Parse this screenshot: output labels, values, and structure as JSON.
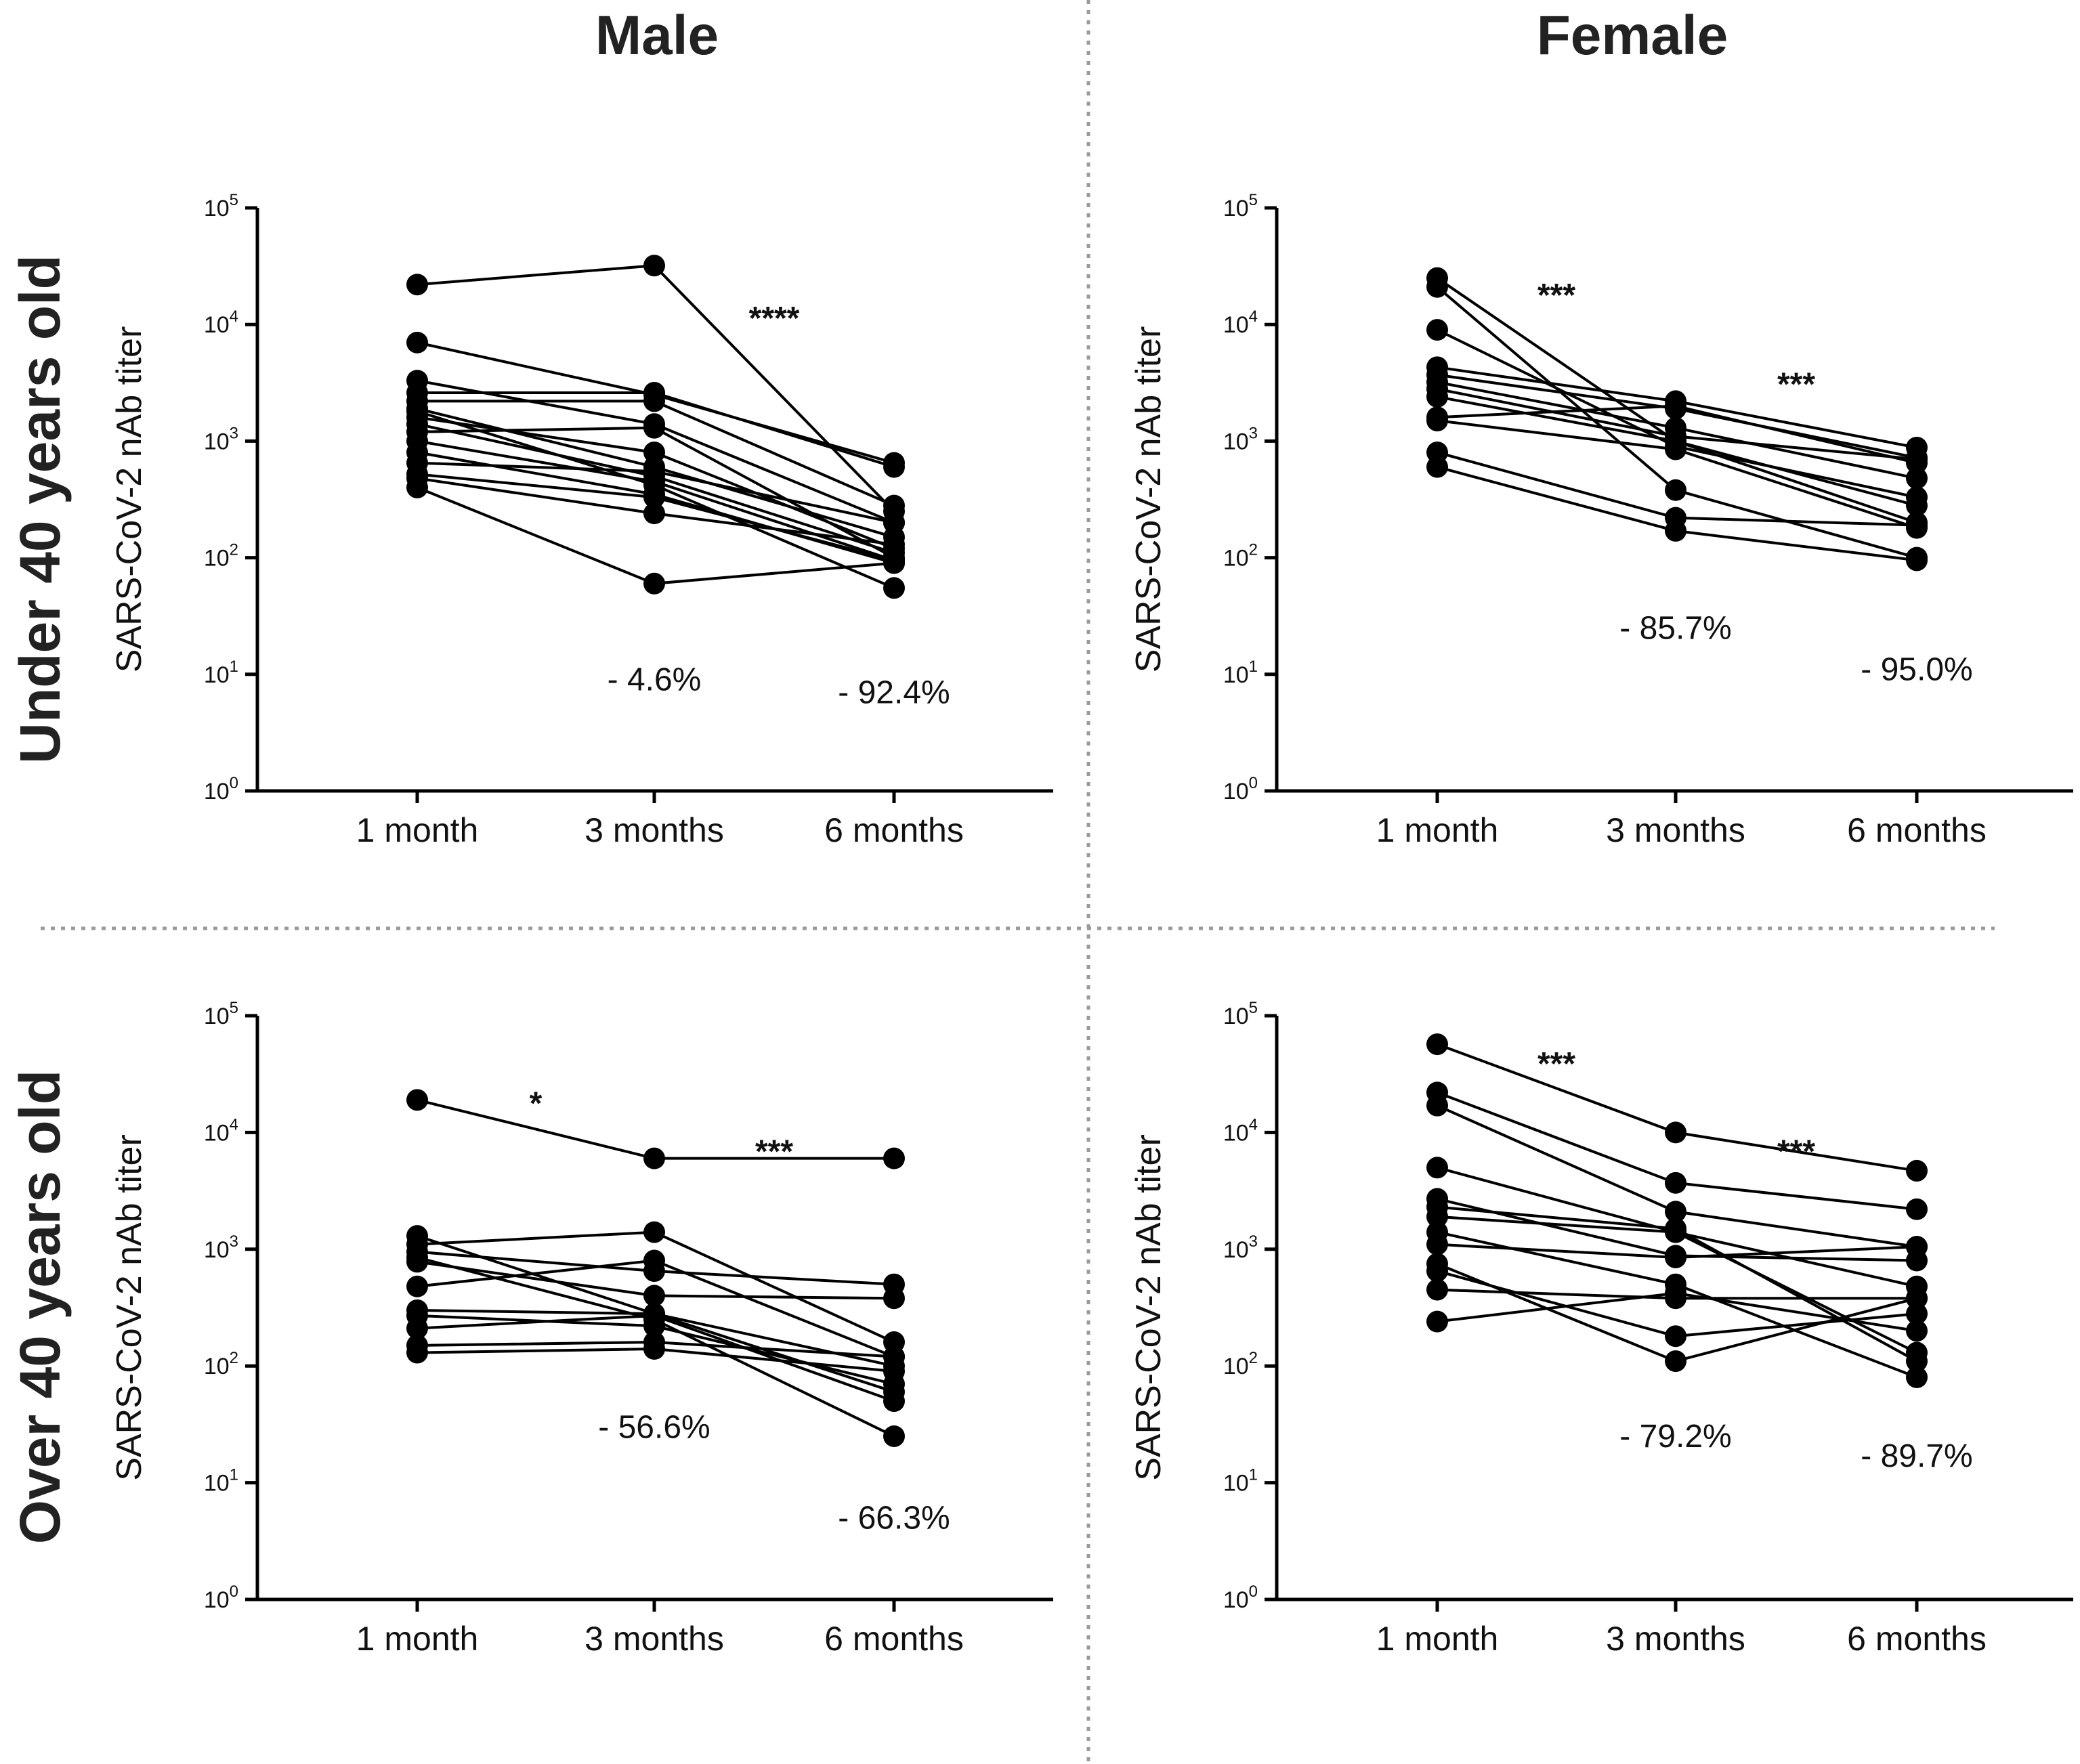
{
  "titles": {
    "col_male": "Male",
    "col_female": "Female",
    "row_under": "Under 40 years old",
    "row_over": "Over 40 years old"
  },
  "colors": {
    "line": "#000000",
    "text": "#111111",
    "divider": "#9a9a9a"
  },
  "chart_data": [
    {
      "id": "male-under40",
      "type": "line",
      "title": "Male / Under 40 years old",
      "xlabel": "",
      "ylabel": "SARS-CoV-2 nAb titer",
      "yscale": "log",
      "ylim": [
        1,
        100000
      ],
      "yticks": [
        {
          "base": "10",
          "exp": "0"
        },
        {
          "base": "10",
          "exp": "1"
        },
        {
          "base": "10",
          "exp": "2"
        },
        {
          "base": "10",
          "exp": "3"
        },
        {
          "base": "10",
          "exp": "4"
        },
        {
          "base": "10",
          "exp": "5"
        }
      ],
      "categories": [
        "1 month",
        "3 months",
        "6 months"
      ],
      "series": [
        {
          "values": [
            22000,
            32000,
            250
          ]
        },
        {
          "values": [
            7000,
            2500,
            650
          ]
        },
        {
          "values": [
            3300,
            1400,
            200
          ]
        },
        {
          "values": [
            2600,
            2600,
            600
          ]
        },
        {
          "values": [
            2200,
            2200,
            280
          ]
        },
        {
          "values": [
            1900,
            600,
            150
          ]
        },
        {
          "values": [
            1600,
            800,
            120
          ]
        },
        {
          "values": [
            1400,
            500,
            110
          ]
        },
        {
          "values": [
            1200,
            1300,
            100
          ]
        },
        {
          "values": [
            1000,
            450,
            95
          ]
        },
        {
          "values": [
            800,
            350,
            90
          ]
        },
        {
          "values": [
            650,
            550,
            200
          ]
        },
        {
          "values": [
            520,
            330,
            95
          ]
        },
        {
          "values": [
            480,
            240,
            130
          ]
        },
        {
          "values": [
            400,
            60,
            90
          ]
        },
        {
          "values": [
            1800,
            420,
            55
          ]
        }
      ],
      "annotations": [
        {
          "text": "****",
          "at": 2.5,
          "y": 14000,
          "kind": "sig"
        },
        {
          "text": "- 4.6%",
          "at": 2,
          "y": 9,
          "kind": "pct"
        },
        {
          "text": "- 92.4%",
          "at": 3,
          "y": 7,
          "kind": "pct"
        }
      ]
    },
    {
      "id": "female-under40",
      "type": "line",
      "title": "Female / Under 40 years old",
      "xlabel": "",
      "ylabel": "SARS-CoV-2 nAb titer",
      "yscale": "log",
      "ylim": [
        1,
        100000
      ],
      "yticks": [
        {
          "base": "10",
          "exp": "0"
        },
        {
          "base": "10",
          "exp": "1"
        },
        {
          "base": "10",
          "exp": "2"
        },
        {
          "base": "10",
          "exp": "3"
        },
        {
          "base": "10",
          "exp": "4"
        },
        {
          "base": "10",
          "exp": "5"
        }
      ],
      "categories": [
        "1 month",
        "3 months",
        "6 months"
      ],
      "series": [
        {
          "values": [
            25000,
            1000,
            200
          ]
        },
        {
          "values": [
            21000,
            380,
            100
          ]
        },
        {
          "values": [
            9000,
            900,
            330
          ]
        },
        {
          "values": [
            4300,
            2200,
            880
          ]
        },
        {
          "values": [
            3700,
            1900,
            720
          ]
        },
        {
          "values": [
            3200,
            1300,
            480
          ]
        },
        {
          "values": [
            2800,
            1100,
            700
          ]
        },
        {
          "values": [
            2400,
            1000,
            280
          ]
        },
        {
          "values": [
            1600,
            2000,
            650
          ]
        },
        {
          "values": [
            1500,
            850,
            180
          ]
        },
        {
          "values": [
            800,
            220,
            190
          ]
        },
        {
          "values": [
            600,
            170,
            95
          ]
        }
      ],
      "annotations": [
        {
          "text": "***",
          "at": 1.5,
          "y": 22000,
          "kind": "sig"
        },
        {
          "text": "***",
          "at": 2.5,
          "y": 3800,
          "kind": "sig"
        },
        {
          "text": "- 85.7%",
          "at": 2,
          "y": 25,
          "kind": "pct"
        },
        {
          "text": "- 95.0%",
          "at": 3,
          "y": 11,
          "kind": "pct"
        }
      ]
    },
    {
      "id": "male-over40",
      "type": "line",
      "title": "Male / Over 40 years old",
      "xlabel": "",
      "ylabel": "SARS-CoV-2 nAb titer",
      "yscale": "log",
      "ylim": [
        1,
        100000
      ],
      "yticks": [
        {
          "base": "10",
          "exp": "0"
        },
        {
          "base": "10",
          "exp": "1"
        },
        {
          "base": "10",
          "exp": "2"
        },
        {
          "base": "10",
          "exp": "3"
        },
        {
          "base": "10",
          "exp": "4"
        },
        {
          "base": "10",
          "exp": "5"
        }
      ],
      "categories": [
        "1 month",
        "3 months",
        "6 months"
      ],
      "series": [
        {
          "values": [
            19000,
            6000,
            6000
          ]
        },
        {
          "values": [
            1300,
            280,
            60
          ]
        },
        {
          "values": [
            1100,
            1400,
            160
          ]
        },
        {
          "values": [
            950,
            650,
            500
          ]
        },
        {
          "values": [
            850,
            250,
            25
          ]
        },
        {
          "values": [
            780,
            400,
            380
          ]
        },
        {
          "values": [
            480,
            800,
            120
          ]
        },
        {
          "values": [
            300,
            280,
            100
          ]
        },
        {
          "values": [
            270,
            220,
            70
          ]
        },
        {
          "values": [
            210,
            270,
            50
          ]
        },
        {
          "values": [
            150,
            160,
            120
          ]
        },
        {
          "values": [
            130,
            140,
            90
          ]
        }
      ],
      "annotations": [
        {
          "text": "*",
          "at": 1.5,
          "y": 22000,
          "kind": "sig"
        },
        {
          "text": "***",
          "at": 2.5,
          "y": 8500,
          "kind": "sig"
        },
        {
          "text": "- 56.6%",
          "at": 2,
          "y": 30,
          "kind": "pct"
        },
        {
          "text": "- 66.3%",
          "at": 3,
          "y": 5,
          "kind": "pct"
        }
      ]
    },
    {
      "id": "female-over40",
      "type": "line",
      "title": "Female / Over 40 years old",
      "xlabel": "",
      "ylabel": "SARS-CoV-2 nAb titer",
      "yscale": "log",
      "ylim": [
        1,
        100000
      ],
      "yticks": [
        {
          "base": "10",
          "exp": "0"
        },
        {
          "base": "10",
          "exp": "1"
        },
        {
          "base": "10",
          "exp": "2"
        },
        {
          "base": "10",
          "exp": "3"
        },
        {
          "base": "10",
          "exp": "4"
        },
        {
          "base": "10",
          "exp": "5"
        }
      ],
      "categories": [
        "1 month",
        "3 months",
        "6 months"
      ],
      "series": [
        {
          "values": [
            57000,
            10000,
            4700
          ]
        },
        {
          "values": [
            22000,
            3700,
            2200
          ]
        },
        {
          "values": [
            17000,
            2100,
            1050
          ]
        },
        {
          "values": [
            5000,
            1400,
            480
          ]
        },
        {
          "values": [
            2700,
            880,
            800
          ]
        },
        {
          "values": [
            2300,
            1500,
            110
          ]
        },
        {
          "values": [
            1900,
            1400,
            130
          ]
        },
        {
          "values": [
            1400,
            500,
            80
          ]
        },
        {
          "values": [
            1100,
            850,
            1050
          ]
        },
        {
          "values": [
            750,
            110,
            380
          ]
        },
        {
          "values": [
            650,
            180,
            280
          ]
        },
        {
          "values": [
            450,
            380,
            380
          ]
        },
        {
          "values": [
            240,
            420,
            200
          ]
        }
      ],
      "annotations": [
        {
          "text": "***",
          "at": 1.5,
          "y": 48000,
          "kind": "sig"
        },
        {
          "text": "***",
          "at": 2.5,
          "y": 8500,
          "kind": "sig"
        },
        {
          "text": "- 79.2%",
          "at": 2,
          "y": 25,
          "kind": "pct"
        },
        {
          "text": "- 89.7%",
          "at": 3,
          "y": 17,
          "kind": "pct"
        }
      ]
    }
  ]
}
